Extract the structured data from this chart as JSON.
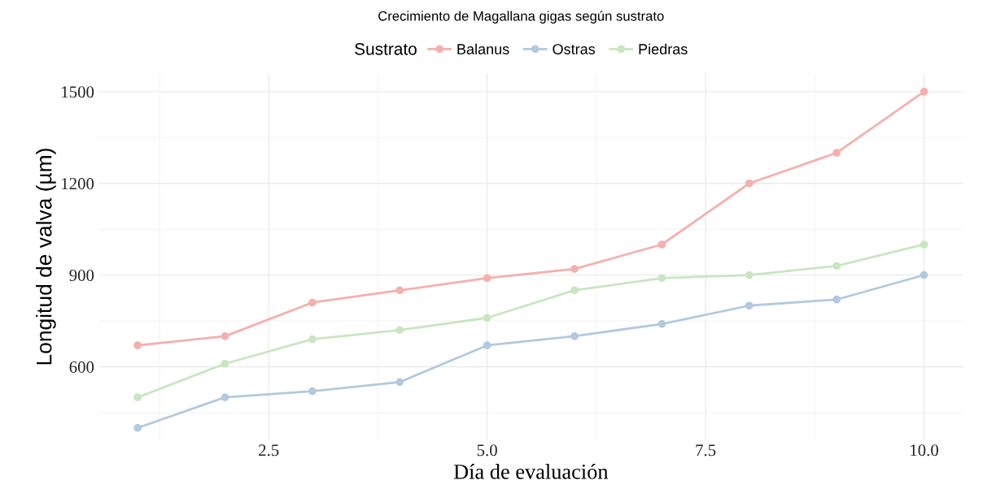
{
  "chart_data": {
    "type": "line",
    "title": "Crecimiento de Magallana gigas según sustrato",
    "xlabel": "Día de evaluación",
    "ylabel": "Longitud de valva (µm)",
    "legend_title": "Sustrato",
    "legend": "top",
    "x": [
      1,
      2,
      3,
      4,
      5,
      6,
      7,
      8,
      9,
      10
    ],
    "series": [
      {
        "name": "Balanus",
        "color": "#f4b0ad",
        "values": [
          670,
          700,
          810,
          850,
          890,
          920,
          1000,
          1200,
          1300,
          1500
        ]
      },
      {
        "name": "Ostras",
        "color": "#b2c9df",
        "values": [
          400,
          500,
          520,
          550,
          670,
          700,
          740,
          800,
          820,
          900
        ]
      },
      {
        "name": "Piedras",
        "color": "#c8e6c1",
        "values": [
          500,
          610,
          690,
          720,
          760,
          850,
          890,
          900,
          930,
          1000
        ]
      }
    ],
    "xlim": [
      0.55,
      10.45
    ],
    "ylim": [
      360,
      1560
    ],
    "xticks": [
      {
        "value": 2.5,
        "label": "2.5"
      },
      {
        "value": 5,
        "label": "5.0"
      },
      {
        "value": 7.5,
        "label": "7.5"
      },
      {
        "value": 10,
        "label": "10.0"
      }
    ],
    "yticks": [
      600,
      900,
      1200,
      1500
    ],
    "grid": true,
    "marker": "circle",
    "line_style": "solid"
  }
}
